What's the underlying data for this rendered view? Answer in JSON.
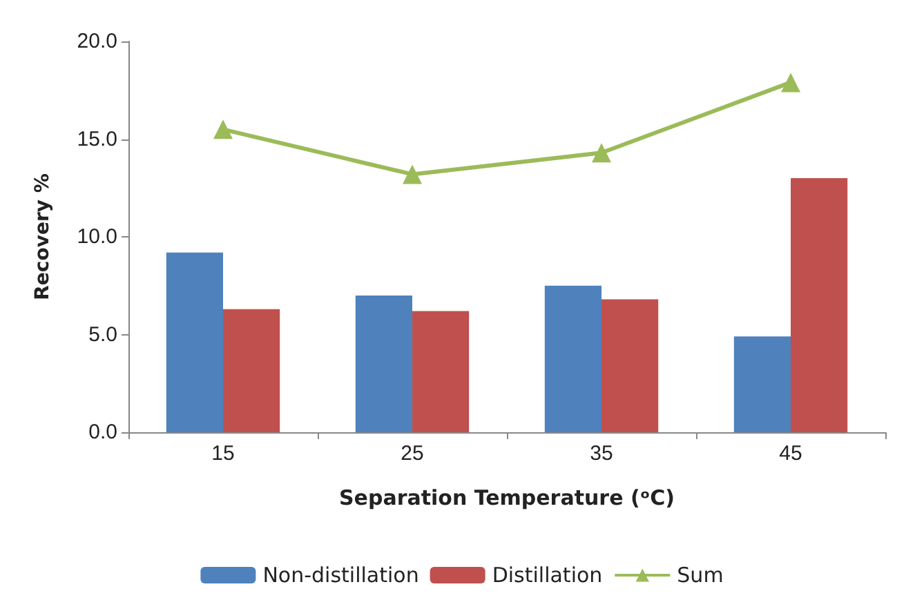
{
  "chart_data": {
    "type": "bar",
    "xlabel": "Separation Temperature (ᵒC)",
    "ylabel": "Recovery %",
    "categories": [
      "15",
      "25",
      "35",
      "45"
    ],
    "series": [
      {
        "name": "Non-distillation",
        "color": "#4f81bd",
        "values": [
          9.2,
          7.0,
          7.5,
          4.9
        ]
      },
      {
        "name": "Distillation",
        "color": "#c0504d",
        "values": [
          6.3,
          6.2,
          6.8,
          13.0
        ]
      },
      {
        "name": "Sum",
        "type": "line",
        "color": "#9bbb59",
        "values": [
          15.5,
          13.2,
          14.3,
          17.9
        ],
        "marker": "triangle"
      }
    ],
    "ylim": [
      0,
      20
    ],
    "yticks": [
      {
        "value": 0,
        "label": "0.0"
      },
      {
        "value": 5,
        "label": "5.0"
      },
      {
        "value": 10,
        "label": "10.0"
      },
      {
        "value": 15,
        "label": "15.0"
      },
      {
        "value": 20,
        "label": "20.0"
      }
    ],
    "grid": false,
    "legend": "bottom"
  }
}
